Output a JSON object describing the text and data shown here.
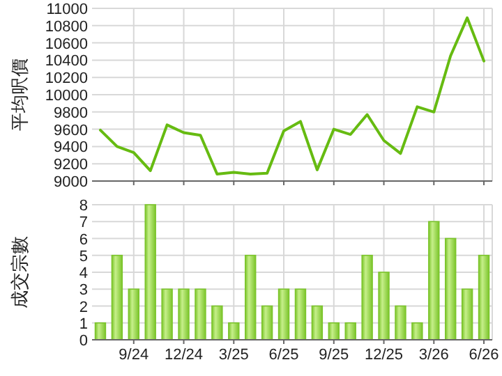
{
  "chart_data": [
    {
      "type": "line",
      "ylabel": "平均呎價",
      "categories": [
        null,
        null,
        null,
        null,
        null,
        null,
        null,
        null,
        null,
        null,
        null,
        null,
        null,
        null,
        null,
        null,
        null,
        null,
        null,
        null,
        null,
        null,
        null,
        null
      ],
      "values": [
        9590,
        9400,
        9330,
        9120,
        9650,
        9560,
        9530,
        9080,
        9100,
        9080,
        9090,
        9580,
        9690,
        9130,
        9600,
        9540,
        9770,
        9470,
        9320,
        9860,
        9800,
        10450,
        10890,
        10390
      ],
      "color": "#66bb11",
      "ylim": [
        9000,
        11000
      ],
      "yticks": [
        9000,
        9200,
        9400,
        9600,
        9800,
        10000,
        10200,
        10400,
        10600,
        10800,
        11000
      ],
      "grid": true,
      "tick_labels": "y"
    },
    {
      "type": "bar",
      "ylabel": "成交宗數",
      "categories": [
        null,
        null,
        "9/24",
        null,
        null,
        "12/24",
        null,
        null,
        "3/25",
        null,
        null,
        "6/25",
        null,
        null,
        "9/25",
        null,
        null,
        "12/25",
        null,
        null,
        "3/26",
        null,
        null,
        "6/26"
      ],
      "values": [
        1,
        5,
        3,
        8,
        3,
        3,
        3,
        2,
        1,
        5,
        2,
        3,
        3,
        2,
        1,
        1,
        5,
        4,
        2,
        1,
        7,
        6,
        3,
        5
      ],
      "color": "#7cc52c",
      "ylim": [
        0,
        8
      ],
      "yticks": [
        0,
        1,
        2,
        3,
        4,
        5,
        6,
        7,
        8
      ],
      "grid": true
    }
  ]
}
